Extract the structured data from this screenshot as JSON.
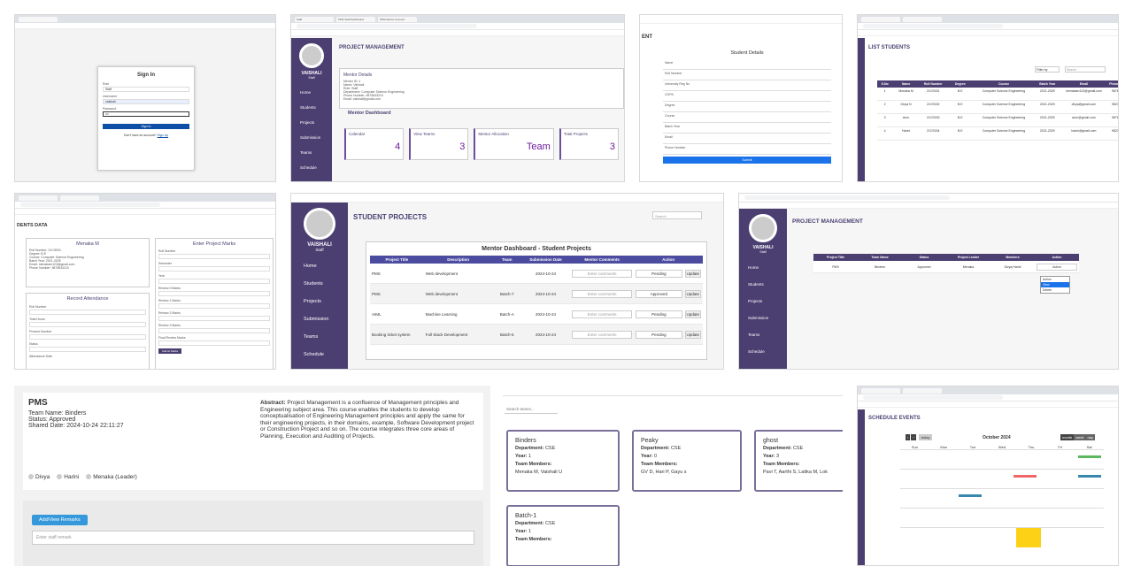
{
  "signin": {
    "title": "Sign In",
    "role_label": "Role",
    "role_value": "Staff",
    "username_label": "Username",
    "username_value": "vaishali",
    "password_label": "Password",
    "password_value": "•••",
    "button": "Sign In",
    "footer": "Don't have an account?",
    "footer_link": "Sign Up"
  },
  "dash": {
    "tabs": [
      "Staff",
      "PMS Staff Dashboard",
      "PMS Mentor Account"
    ],
    "brand": "PROJECT MANAGEMENT",
    "user": "VAISHALI",
    "role": "Staff",
    "nav": [
      "Home",
      "Students",
      "Projects",
      "Submission",
      "Teams",
      "Schedule"
    ],
    "mentor_title": "Mentor Details",
    "mentor_lines": [
      "Mentor ID: 1",
      "Name: Vaishali",
      "Role: Staff",
      "Department: Computer Science Engineering",
      "Phone Number: 9876543210",
      "Email: vaishali@gmail.com"
    ],
    "section": "Mentor Dashboard",
    "stats": [
      {
        "label": "Calendar",
        "value": "4"
      },
      {
        "label": "View Teams",
        "value": "3"
      },
      {
        "label": "Mentor Allocation",
        "value": "Team"
      },
      {
        "label": "Total Projects",
        "value": "3"
      }
    ]
  },
  "details": {
    "partial": "ENT",
    "title": "Student Details",
    "fields": [
      "Name",
      "Roll Number",
      "University Reg No",
      "CGPA",
      "Degree",
      "Course",
      "Batch Year",
      "Email",
      "Phone Number"
    ],
    "button": "Submit"
  },
  "list": {
    "title": "LIST STUDENTS",
    "filter": "Filter by",
    "search": "Search",
    "cols": [
      "S.No",
      "Name",
      "Roll Number",
      "Degree",
      "Course",
      "Batch Year",
      "Email",
      "Phone Number"
    ],
    "rows": [
      [
        "1",
        "Menaka M",
        "21CS001",
        "B.E",
        "Computer Science Engineering",
        "2021-2025",
        "menakam123@gmail.com",
        "9876543210"
      ],
      [
        "2",
        "Divya N",
        "21CS002",
        "B.E",
        "Computer Science Engineering",
        "2021-2025",
        "divya@gmail.com",
        "9823456710"
      ],
      [
        "3",
        "Arun",
        "21CS003",
        "B.E",
        "Computer Science Engineering",
        "2021-2025",
        "arun@gmail.com",
        "9871234560"
      ],
      [
        "4",
        "Harini",
        "21CS004",
        "B.E",
        "Computer Science Engineering",
        "2021-2025",
        "harini@gmail.com",
        "9823456712"
      ]
    ]
  },
  "marks": {
    "partial": "DENTS DATA",
    "student": "Menaka M",
    "info": [
      "Roll Number: 21CS001",
      "Degree: B.E",
      "Course: Computer Science Engineering",
      "Batch Year: 2021-2025",
      "Email: menakam123@gmail.com",
      "Phone Number: 9876543210"
    ],
    "attendance": "Record Attendance",
    "att_fields": [
      "Roll Number",
      "Total Hours",
      "Present Number",
      "Status",
      "Attendance Date"
    ],
    "marks_title": "Enter Project Marks",
    "mark_fields": [
      "Roll Number",
      "Semester",
      "Year",
      "Review 0 Marks",
      "Review 1 Marks",
      "Review 2 Marks",
      "Review 3 Marks",
      "Final Review Marks"
    ],
    "button": "Submit Marks"
  },
  "projects": {
    "title": "STUDENT PROJECTS",
    "search": "Search",
    "card_title": "Mentor Dashboard - Student Projects",
    "cols": [
      "Project Title",
      "Description",
      "Team",
      "Submission Date",
      "Mentor Comments",
      "Action"
    ],
    "rows": [
      [
        "PMS",
        "Web development",
        "",
        "2024-10-24",
        "Enter comments",
        "Pending",
        "Update"
      ],
      [
        "PMS",
        "Web development",
        "Batch-7",
        "2024-10-24",
        "Enter comments",
        "Approved",
        "Update"
      ],
      [
        "AIML",
        "Machine Learning",
        "Batch-A",
        "2024-10-24",
        "Enter comments",
        "Pending",
        "Update"
      ],
      [
        "Booking ticket system",
        "Full Stack Development",
        "Batch-5",
        "2024-10-24",
        "Enter comments",
        "Pending",
        "Update"
      ]
    ]
  },
  "action": {
    "title": "PROJECT MANAGEMENT",
    "cols": [
      "Project Title",
      "Team Name",
      "Status",
      "Project Leader",
      "Members",
      "Action"
    ],
    "row": [
      "PMS",
      "Binders",
      "Approved",
      "Menaka",
      "Divya,Harini"
    ],
    "dropdown": [
      "Action",
      "View",
      "Delete"
    ]
  },
  "pms": {
    "title": "PMS",
    "team": "Team Name: Binders",
    "status": "Status: Approved",
    "shared": "Shared Date: 2024-10-24 22:11:27",
    "abstract_label": "Abstract:",
    "abstract": "Project Management is a confluence of Management principles and Engineering subject area. This course enables the students to develop conceptualisation of Engineering Management principles and apply the same for their engineering projects, in their domains, example, Software Development project or Construction Project and so on. The course integrates three core areas of Planning, Execution and Auditing of Projects.",
    "members": [
      "Divya",
      "Harini",
      "Menaka (Leader)"
    ],
    "button": "Add/View Remarks",
    "placeholder": "Enter staff remark"
  },
  "teams": {
    "search": "Search teams...",
    "cards": [
      {
        "name": "Binders",
        "dept": "CSE",
        "year": "1",
        "members": "Menaka M, Vaishali U"
      },
      {
        "name": "Peaky",
        "dept": "CSE",
        "year": "0",
        "members": "GV D, Hari P, Gayu s"
      },
      {
        "name": "ghost",
        "dept": "CSE",
        "year": "3",
        "members": "Pavi T, Aarthi S, Latika M, Lok"
      },
      {
        "name": "Batch-1",
        "dept": "CSE",
        "year": "1",
        "members": ""
      }
    ],
    "dept_label": "Department:",
    "year_label": "Year:",
    "members_label": "Team Members:"
  },
  "schedule": {
    "title": "SCHEDULE EVENTS",
    "month": "October 2024",
    "today": "today",
    "views": [
      "month",
      "week",
      "day"
    ],
    "days": [
      "Sun",
      "Mon",
      "Tue",
      "Wed",
      "Thu",
      "Fri",
      "Sat"
    ]
  }
}
